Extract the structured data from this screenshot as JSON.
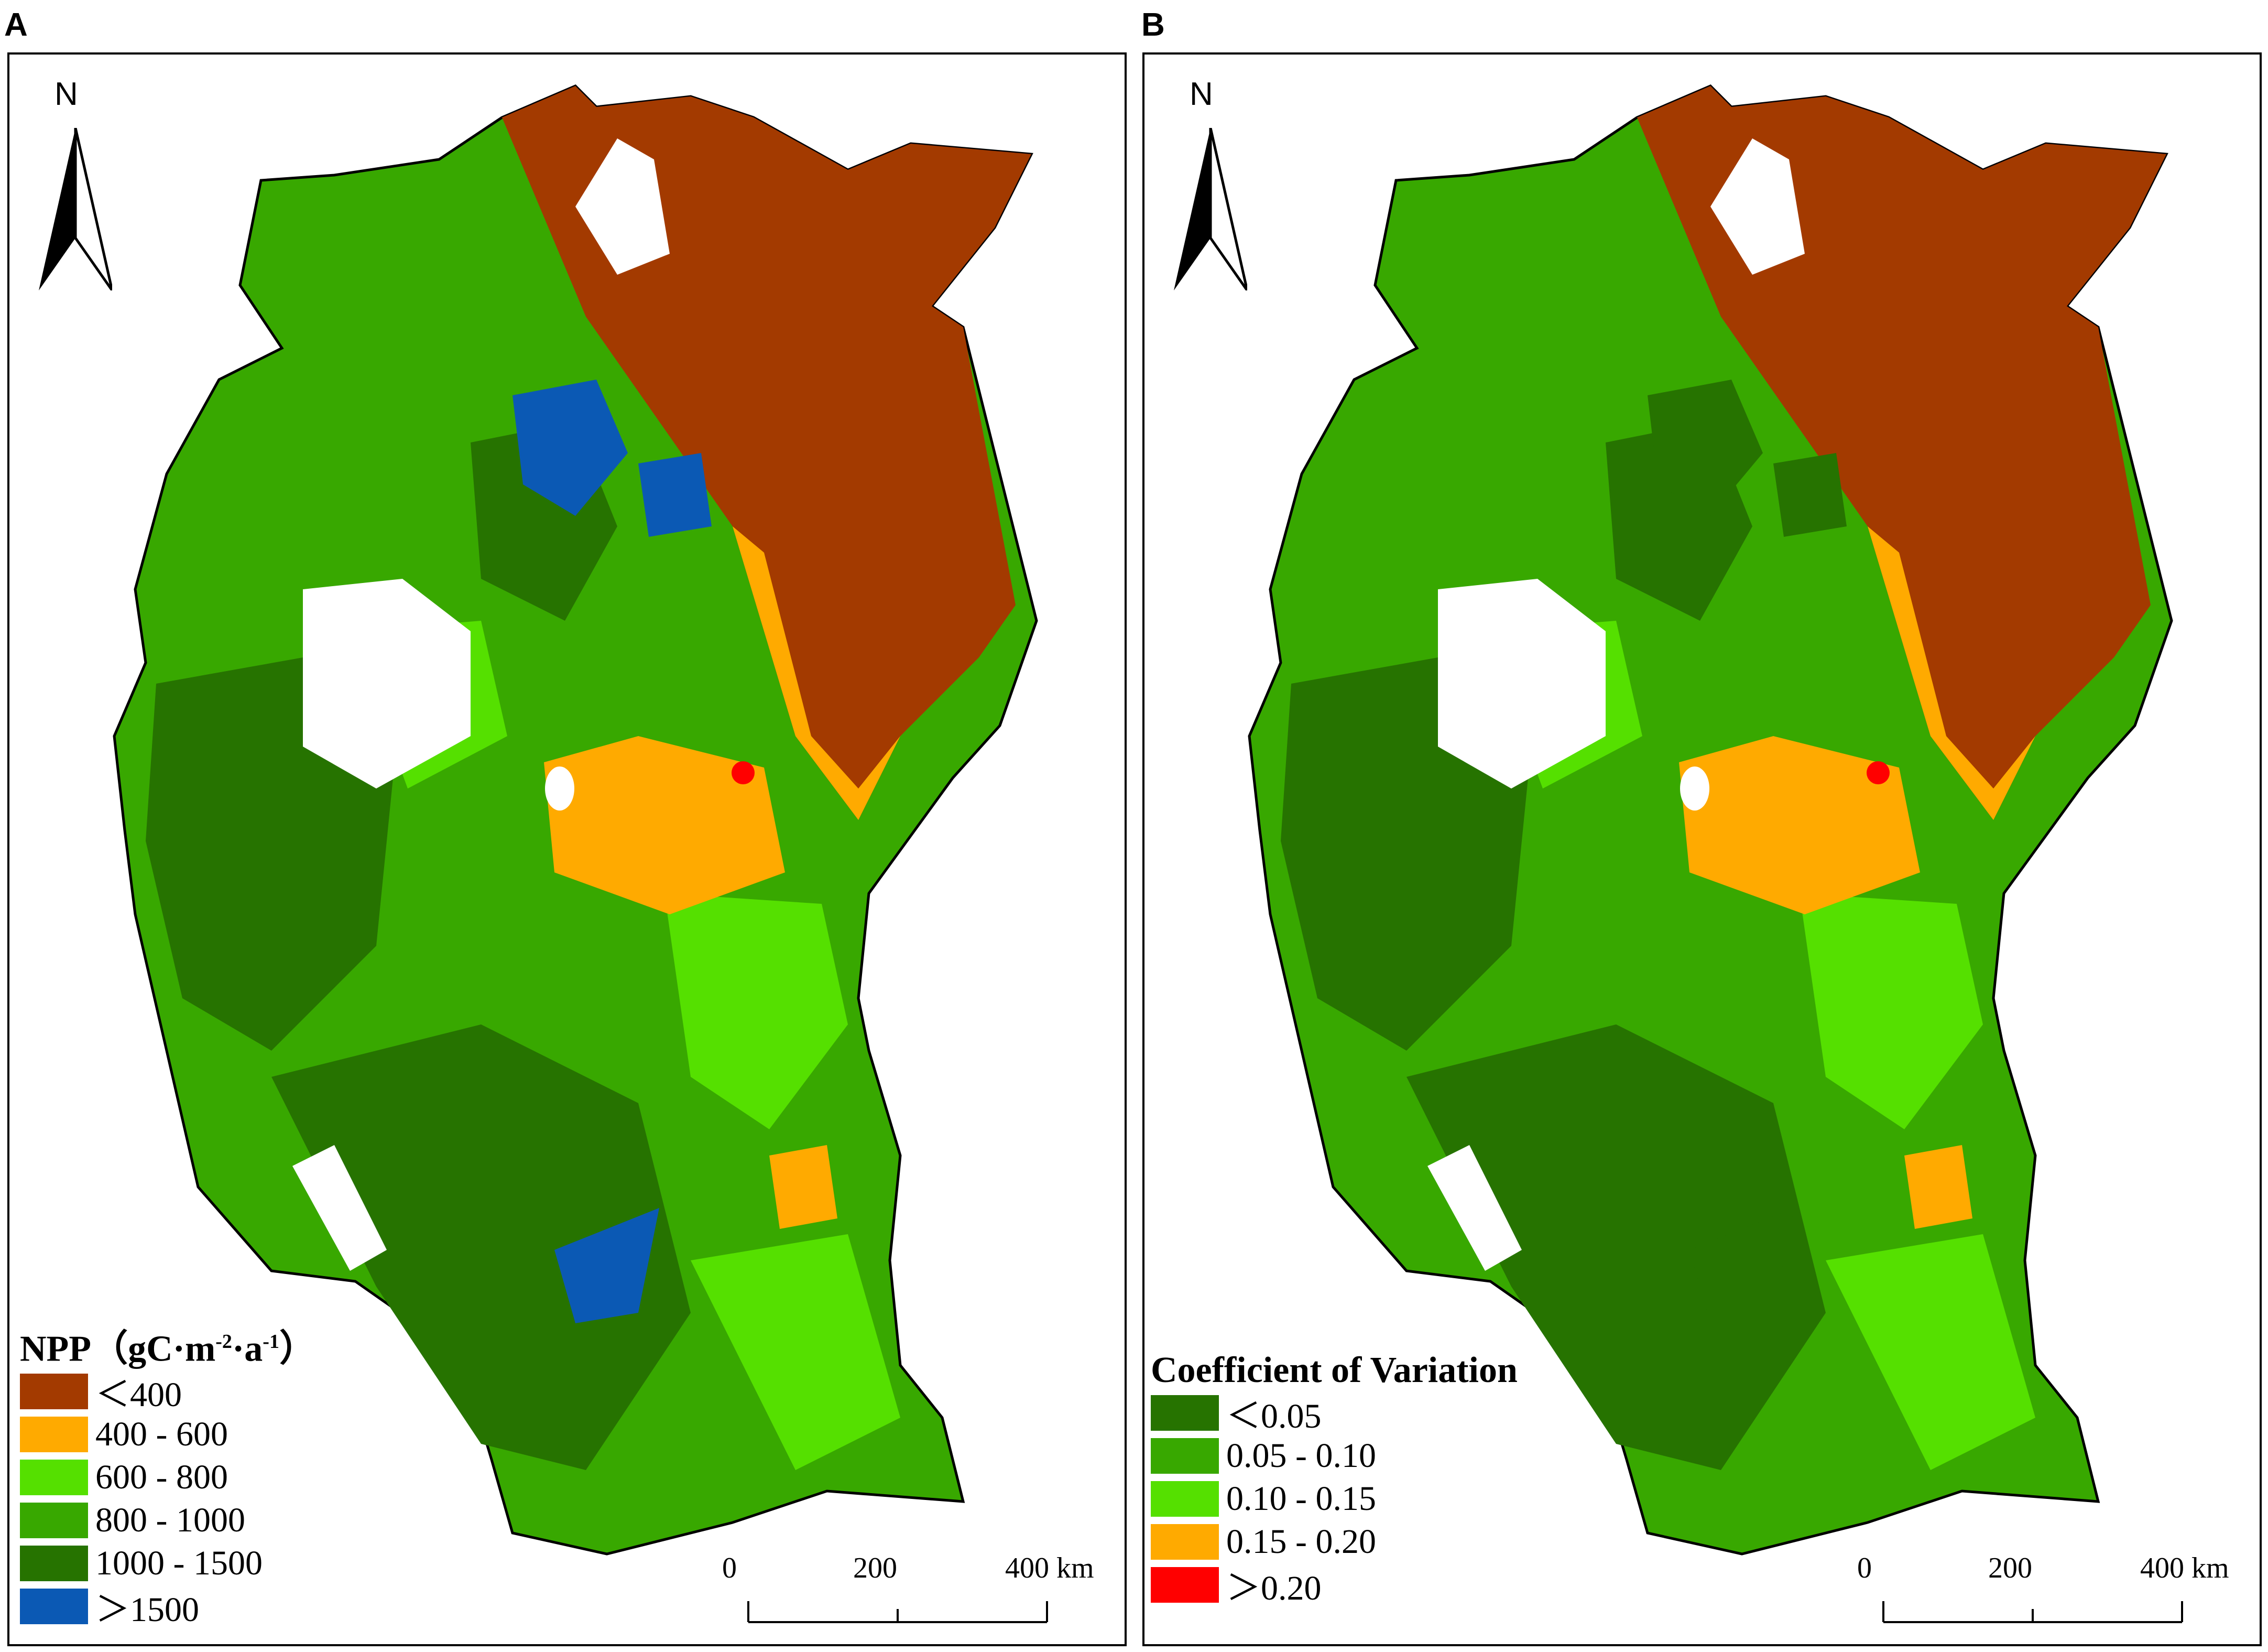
{
  "panels": [
    {
      "id": "A",
      "label": "A",
      "north": "N",
      "legend": {
        "title_main": "NPP（gC·m",
        "title_sup1": "-2",
        "title_mid": "·a",
        "title_sup2": "-1",
        "title_end": "）",
        "items": [
          {
            "label": "＜400",
            "color": "#a33a00"
          },
          {
            "label": "400 - 600",
            "color": "#ffaa00"
          },
          {
            "label": "600 - 800",
            "color": "#55e000"
          },
          {
            "label": "800 - 1000",
            "color": "#38a800"
          },
          {
            "label": "1000 - 1500",
            "color": "#267300"
          },
          {
            "label": "＞1500",
            "color": "#0b59b4"
          }
        ]
      },
      "scale": {
        "ticks": [
          "0",
          "200",
          "400"
        ],
        "unit": "km"
      }
    },
    {
      "id": "B",
      "label": "B",
      "north": "N",
      "legend": {
        "title": "Coefficient of Variation",
        "items": [
          {
            "label": "＜0.05",
            "color": "#267300"
          },
          {
            "label": "0.05 - 0.10",
            "color": "#38a800"
          },
          {
            "label": "0.10 - 0.15",
            "color": "#55e000"
          },
          {
            "label": "0.15 - 0.20",
            "color": "#ffaa00"
          },
          {
            "label": "＞0.20",
            "color": "#ff0000"
          }
        ]
      },
      "scale": {
        "ticks": [
          "0",
          "200",
          "400"
        ],
        "unit": "km"
      }
    }
  ],
  "map_colors": {
    "dry": "#a33a00",
    "orange": "#ffaa00",
    "light_green": "#55e000",
    "mid_green": "#38a800",
    "dark_green": "#267300",
    "blue": "#0b59b4",
    "water": "#ffffff",
    "red": "#ff0000"
  }
}
